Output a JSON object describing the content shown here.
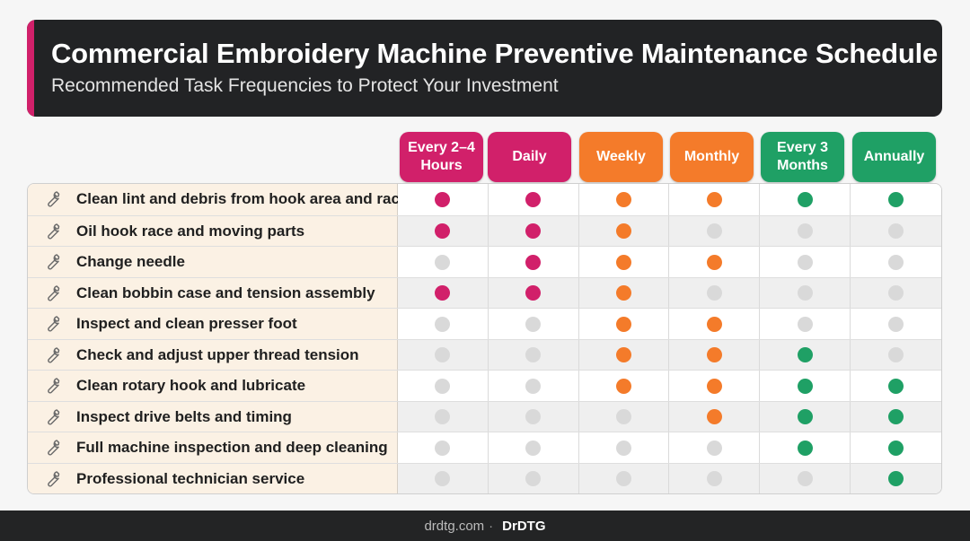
{
  "header": {
    "title": "Commercial Embroidery Machine Preventive Maintenance Schedule",
    "subtitle": "Recommended Task Frequencies to Protect Your Investment",
    "accent_color": "#d1206a"
  },
  "colors": {
    "magenta": "#d1206a",
    "orange": "#f47b2a",
    "green": "#1fa065",
    "inactive": "#d9d9d9"
  },
  "chart_data": {
    "type": "table",
    "columns": [
      {
        "label": "Every 2–4 Hours",
        "color": "#d1206a"
      },
      {
        "label": "Daily",
        "color": "#d1206a"
      },
      {
        "label": "Weekly",
        "color": "#f47b2a"
      },
      {
        "label": "Monthly",
        "color": "#f47b2a"
      },
      {
        "label": "Every 3 Months",
        "color": "#1fa065"
      },
      {
        "label": "Annually",
        "color": "#1fa065"
      }
    ],
    "rows": [
      {
        "task": "Clean lint and debris from hook area and race",
        "values": [
          1,
          1,
          1,
          1,
          1,
          1
        ]
      },
      {
        "task": "Oil hook race and moving parts",
        "values": [
          1,
          1,
          1,
          0,
          0,
          0
        ]
      },
      {
        "task": "Change needle",
        "values": [
          0,
          1,
          1,
          1,
          0,
          0
        ]
      },
      {
        "task": "Clean bobbin case and tension assembly",
        "values": [
          1,
          1,
          1,
          0,
          0,
          0
        ]
      },
      {
        "task": "Inspect and clean presser foot",
        "values": [
          0,
          0,
          1,
          1,
          0,
          0
        ]
      },
      {
        "task": "Check and adjust upper thread tension",
        "values": [
          0,
          0,
          1,
          1,
          1,
          0
        ]
      },
      {
        "task": "Clean rotary hook and lubricate",
        "values": [
          0,
          0,
          1,
          1,
          1,
          1
        ]
      },
      {
        "task": "Inspect drive belts and timing",
        "values": [
          0,
          0,
          0,
          1,
          1,
          1
        ]
      },
      {
        "task": "Full machine inspection and deep cleaning",
        "values": [
          0,
          0,
          0,
          0,
          1,
          1
        ]
      },
      {
        "task": "Professional technician service",
        "values": [
          0,
          0,
          0,
          0,
          0,
          1
        ]
      }
    ],
    "row_icon": "wrench-icon"
  },
  "footer": {
    "site": "drdtg.com",
    "separator": "·",
    "brand": "DrDTG"
  }
}
